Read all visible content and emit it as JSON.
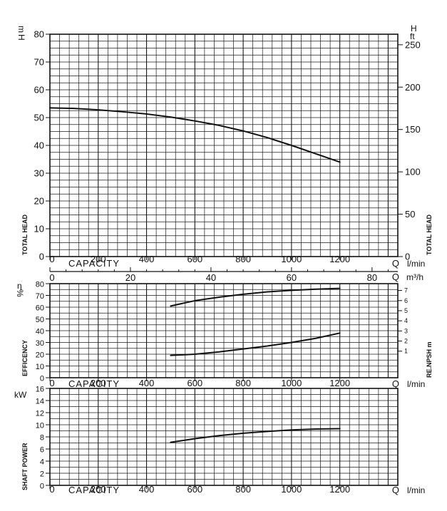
{
  "colors": {
    "ink": "#111111",
    "grid": "#1a1a1a",
    "paper": "#ffffff"
  },
  "chart_data": [
    {
      "type": "line",
      "name_id": "head",
      "xlabel": "CAPACITY",
      "x_unit": "l/min",
      "x_end": "Q",
      "x_ticks": [
        "0",
        "200",
        "400",
        "600",
        "800",
        "1000",
        "1200"
      ],
      "xlim": [
        0,
        1440
      ],
      "left_axis": {
        "label": "TOTAL HEAD",
        "symbol": "H",
        "unit": "m",
        "ylim": [
          0,
          80
        ],
        "ticks": [
          "0",
          "10",
          "20",
          "30",
          "40",
          "50",
          "60",
          "70",
          "80"
        ]
      },
      "right_axis": {
        "label": "TOTAL HEAD",
        "symbol": "H",
        "unit": "ft",
        "ticks": [
          {
            "v": 0,
            "label": "0"
          },
          {
            "v": 50,
            "label": "50"
          },
          {
            "v": 100,
            "label": "100"
          },
          {
            "v": 150,
            "label": "150"
          },
          {
            "v": 200,
            "label": "200"
          },
          {
            "v": 250,
            "label": "250"
          }
        ]
      },
      "secondary_x": {
        "unit": "m³/h",
        "end": "Q",
        "ticks": [
          "0",
          "20",
          "40",
          "60",
          "80"
        ]
      },
      "grid": true,
      "series": [
        {
          "x": [
            0,
            100,
            200,
            300,
            400,
            500,
            600,
            700,
            800,
            900,
            1000,
            1100,
            1200
          ],
          "y": [
            53.5,
            53.3,
            52.8,
            52.1,
            51.3,
            50.2,
            48.8,
            47.2,
            45.2,
            42.8,
            40.0,
            37.0,
            34.0
          ]
        }
      ]
    },
    {
      "type": "line",
      "name_id": "efficiency",
      "xlabel": "CAPACITY",
      "x_unit": "l/min",
      "x_end": "Q",
      "x_ticks": [
        "0",
        "200",
        "400",
        "600",
        "800",
        "1000",
        "1200"
      ],
      "xlim": [
        0,
        1440
      ],
      "left_axis": {
        "label": "EFFICENCY",
        "symbol": "η",
        "unit": "%",
        "ylim": [
          0,
          80
        ],
        "ticks": [
          "0",
          "10",
          "20",
          "30",
          "40",
          "50",
          "60",
          "70",
          "80"
        ]
      },
      "right_axis": {
        "label": "RE.NPSH m",
        "ticks": [
          "1",
          "2",
          "3",
          "4",
          "5",
          "6",
          "7"
        ]
      },
      "grid": true,
      "series": [
        {
          "x": [
            500,
            600,
            700,
            800,
            900,
            1000,
            1100,
            1200
          ],
          "y": [
            61,
            65.5,
            68.5,
            71,
            73,
            74.3,
            75.3,
            76
          ]
        },
        {
          "x": [
            500,
            600,
            700,
            800,
            900,
            1000,
            1100,
            1200
          ],
          "y": [
            19,
            20,
            22,
            24.5,
            27,
            30,
            33.5,
            38
          ]
        }
      ]
    },
    {
      "type": "line",
      "name_id": "power",
      "xlabel": "CAPACITY",
      "x_unit": "l/min",
      "x_end": "Q",
      "x_ticks": [
        "0",
        "200",
        "400",
        "600",
        "800",
        "1000",
        "1200"
      ],
      "xlim": [
        0,
        1440
      ],
      "left_axis": {
        "label": "SHAFT POWER",
        "unit": "kW",
        "ylim": [
          0,
          16
        ],
        "ticks": [
          "0",
          "2",
          "4",
          "6",
          "8",
          "10",
          "12",
          "14",
          "16"
        ]
      },
      "grid": true,
      "series": [
        {
          "x": [
            500,
            600,
            700,
            800,
            900,
            1000,
            1100,
            1200
          ],
          "y": [
            7.1,
            7.7,
            8.2,
            8.6,
            8.9,
            9.15,
            9.3,
            9.35
          ]
        }
      ]
    }
  ]
}
